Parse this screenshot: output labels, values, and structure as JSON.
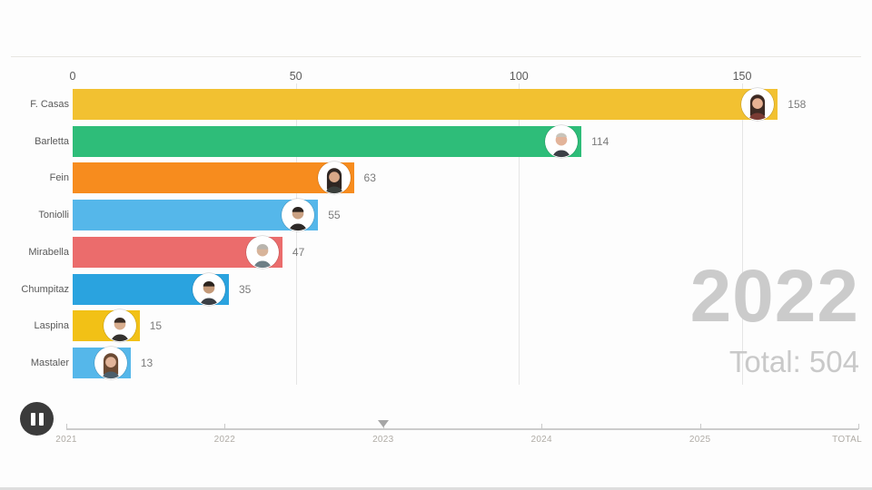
{
  "chart_data": {
    "type": "bar",
    "orientation": "horizontal",
    "title": "",
    "categories": [
      "F. Casas",
      "Barletta",
      "Fein",
      "Toniolli",
      "Mirabella",
      "Chumpitaz",
      "Laspina",
      "Mastaler"
    ],
    "values": [
      158,
      114,
      63,
      55,
      47,
      35,
      15,
      13
    ],
    "bar_colors": [
      "#f2c131",
      "#2ebd79",
      "#f78c1e",
      "#55b7ea",
      "#eb6c6c",
      "#2aa3df",
      "#f2c116",
      "#55b7ea"
    ],
    "x_ticks": [
      0,
      50,
      100,
      150
    ],
    "xlim": [
      0,
      179
    ],
    "grid": true,
    "gridline_color": "#e5e5e5",
    "value_label_color": "#7b7b7b",
    "category_label_color": "#595959",
    "year_label": "2022",
    "total_label": "Total: 504",
    "avatars": [
      {
        "icon": "person-avatar-icon",
        "style": "long",
        "hair": "#3e2a23",
        "skin": "#e7b193",
        "shirt": "#7a3b33"
      },
      {
        "icon": "person-avatar-icon",
        "style": "bald",
        "hair": "#c9c4ba",
        "skin": "#e3b49a",
        "shirt": "#3c3f46"
      },
      {
        "icon": "person-avatar-icon",
        "style": "long",
        "hair": "#2f2622",
        "skin": "#d9a888",
        "shirt": "#3a3f3c"
      },
      {
        "icon": "person-avatar-icon",
        "style": "short",
        "hair": "#2b2420",
        "skin": "#caa183",
        "shirt": "#2e2a28"
      },
      {
        "icon": "person-avatar-icon",
        "style": "short",
        "hair": "#b9b5ae",
        "skin": "#d8b49a",
        "shirt": "#6e7f86"
      },
      {
        "icon": "person-avatar-icon",
        "style": "short",
        "hair": "#2c241e",
        "skin": "#c49a79",
        "shirt": "#3b3f45"
      },
      {
        "icon": "person-avatar-icon",
        "style": "short",
        "hair": "#3a2d24",
        "skin": "#d8ad8d",
        "shirt": "#35322f"
      },
      {
        "icon": "person-avatar-icon",
        "style": "long",
        "hair": "#6b4a33",
        "skin": "#e2b59a",
        "shirt": "#4b5e6b"
      }
    ]
  },
  "timeline": {
    "ticks": [
      "2021",
      "2022",
      "2023",
      "2024",
      "2025",
      "TOTAL"
    ],
    "marker_tick_index": 2,
    "line_color": "#cccccc",
    "label_color": "#b0aca6"
  },
  "controls": {
    "play_state_icon": "pause-icon"
  }
}
